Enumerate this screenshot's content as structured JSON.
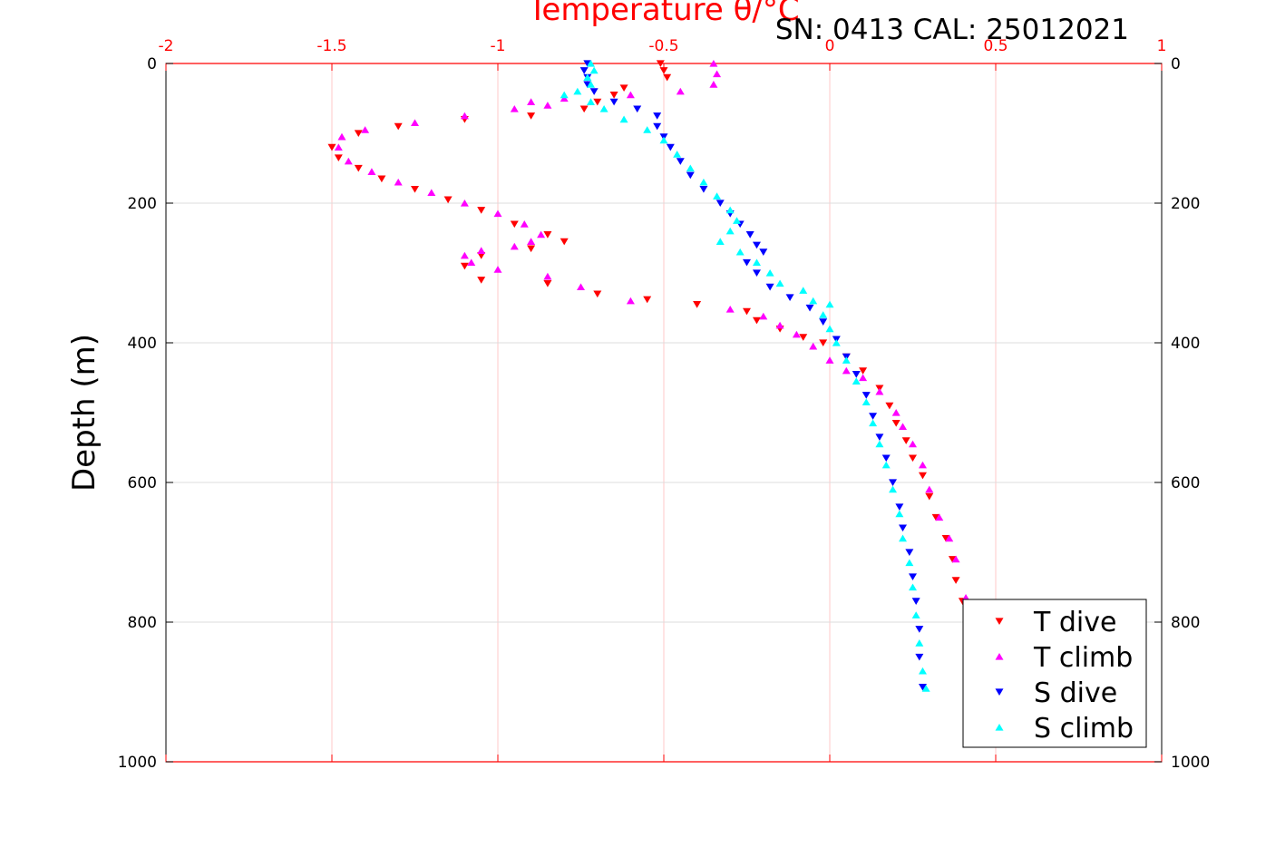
{
  "chart_data": {
    "type": "scatter",
    "title": "Temperature θ/°C",
    "subtitle": "SN: 0413  CAL: 25012021",
    "xlabel": "Temperature θ/°C",
    "ylabel": "Depth (m)",
    "xlim": [
      -2,
      1
    ],
    "ylim": [
      0,
      1000
    ],
    "y_reversed": true,
    "x_axis_position": "top",
    "x_axis_color": "#ff0000",
    "x_ticks": [
      "-2",
      "-1.5",
      "-1",
      "-0.5",
      "0",
      "0.5",
      "1"
    ],
    "y_ticks": [
      "0",
      "200",
      "400",
      "600",
      "800",
      "1000"
    ],
    "grid": true,
    "legend_position": "bottom-right",
    "series": [
      {
        "name": "T dive",
        "color": "#ff0000",
        "marker": "triangle-down",
        "points": [
          [
            -0.51,
            0
          ],
          [
            -0.5,
            10
          ],
          [
            -0.49,
            20
          ],
          [
            -0.62,
            35
          ],
          [
            -0.65,
            45
          ],
          [
            -0.7,
            55
          ],
          [
            -0.74,
            65
          ],
          [
            -0.9,
            75
          ],
          [
            -1.1,
            80
          ],
          [
            -1.3,
            90
          ],
          [
            -1.42,
            100
          ],
          [
            -1.5,
            120
          ],
          [
            -1.48,
            135
          ],
          [
            -1.42,
            150
          ],
          [
            -1.35,
            165
          ],
          [
            -1.25,
            180
          ],
          [
            -1.15,
            195
          ],
          [
            -1.05,
            210
          ],
          [
            -0.95,
            230
          ],
          [
            -0.85,
            245
          ],
          [
            -0.8,
            255
          ],
          [
            -0.9,
            265
          ],
          [
            -1.05,
            275
          ],
          [
            -1.1,
            290
          ],
          [
            -1.05,
            310
          ],
          [
            -0.85,
            315
          ],
          [
            -0.7,
            330
          ],
          [
            -0.55,
            338
          ],
          [
            -0.4,
            345
          ],
          [
            -0.25,
            355
          ],
          [
            -0.22,
            368
          ],
          [
            -0.15,
            380
          ],
          [
            -0.08,
            392
          ],
          [
            -0.02,
            400
          ],
          [
            0.05,
            420
          ],
          [
            0.1,
            440
          ],
          [
            0.15,
            465
          ],
          [
            0.18,
            490
          ],
          [
            0.2,
            515
          ],
          [
            0.23,
            540
          ],
          [
            0.25,
            565
          ],
          [
            0.28,
            590
          ],
          [
            0.3,
            620
          ],
          [
            0.32,
            650
          ],
          [
            0.35,
            680
          ],
          [
            0.37,
            710
          ],
          [
            0.38,
            740
          ],
          [
            0.4,
            770
          ]
        ]
      },
      {
        "name": "T climb",
        "color": "#ff00ff",
        "marker": "triangle-up",
        "points": [
          [
            -0.35,
            0
          ],
          [
            -0.34,
            15
          ],
          [
            -0.35,
            30
          ],
          [
            -0.45,
            40
          ],
          [
            -0.6,
            45
          ],
          [
            -0.8,
            50
          ],
          [
            -0.9,
            55
          ],
          [
            -0.85,
            60
          ],
          [
            -0.95,
            65
          ],
          [
            -1.1,
            75
          ],
          [
            -1.25,
            85
          ],
          [
            -1.4,
            95
          ],
          [
            -1.47,
            105
          ],
          [
            -1.48,
            120
          ],
          [
            -1.45,
            140
          ],
          [
            -1.38,
            155
          ],
          [
            -1.3,
            170
          ],
          [
            -1.2,
            185
          ],
          [
            -1.1,
            200
          ],
          [
            -1.0,
            215
          ],
          [
            -0.92,
            230
          ],
          [
            -0.87,
            245
          ],
          [
            -0.9,
            255
          ],
          [
            -0.95,
            262
          ],
          [
            -1.05,
            268
          ],
          [
            -1.1,
            275
          ],
          [
            -1.08,
            285
          ],
          [
            -1.0,
            295
          ],
          [
            -0.85,
            305
          ],
          [
            -0.75,
            320
          ],
          [
            -0.6,
            340
          ],
          [
            -0.3,
            352
          ],
          [
            -0.2,
            362
          ],
          [
            -0.15,
            375
          ],
          [
            -0.1,
            388
          ],
          [
            -0.05,
            405
          ],
          [
            0.0,
            425
          ],
          [
            0.05,
            440
          ],
          [
            0.1,
            450
          ],
          [
            0.15,
            470
          ],
          [
            0.2,
            500
          ],
          [
            0.22,
            520
          ],
          [
            0.25,
            545
          ],
          [
            0.28,
            575
          ],
          [
            0.3,
            610
          ],
          [
            0.33,
            650
          ],
          [
            0.36,
            680
          ],
          [
            0.38,
            710
          ],
          [
            0.41,
            765
          ]
        ]
      },
      {
        "name": "S dive",
        "color": "#0000ff",
        "marker": "triangle-down",
        "points": [
          [
            -0.73,
            0
          ],
          [
            -0.74,
            10
          ],
          [
            -0.73,
            20
          ],
          [
            -0.73,
            30
          ],
          [
            -0.71,
            40
          ],
          [
            -0.65,
            55
          ],
          [
            -0.58,
            65
          ],
          [
            -0.52,
            75
          ],
          [
            -0.52,
            90
          ],
          [
            -0.5,
            105
          ],
          [
            -0.48,
            120
          ],
          [
            -0.45,
            140
          ],
          [
            -0.42,
            160
          ],
          [
            -0.38,
            180
          ],
          [
            -0.33,
            200
          ],
          [
            -0.3,
            215
          ],
          [
            -0.27,
            230
          ],
          [
            -0.24,
            245
          ],
          [
            -0.22,
            260
          ],
          [
            -0.2,
            270
          ],
          [
            -0.25,
            285
          ],
          [
            -0.22,
            300
          ],
          [
            -0.18,
            320
          ],
          [
            -0.12,
            335
          ],
          [
            -0.06,
            350
          ],
          [
            -0.02,
            370
          ],
          [
            0.02,
            395
          ],
          [
            0.05,
            420
          ],
          [
            0.08,
            445
          ],
          [
            0.11,
            475
          ],
          [
            0.13,
            505
          ],
          [
            0.15,
            535
          ],
          [
            0.17,
            565
          ],
          [
            0.19,
            600
          ],
          [
            0.21,
            635
          ],
          [
            0.22,
            665
          ],
          [
            0.24,
            700
          ],
          [
            0.25,
            735
          ],
          [
            0.26,
            770
          ],
          [
            0.27,
            810
          ],
          [
            0.27,
            850
          ],
          [
            0.28,
            893
          ]
        ]
      },
      {
        "name": "S climb",
        "color": "#00ffff",
        "marker": "triangle-up",
        "points": [
          [
            -0.72,
            0
          ],
          [
            -0.71,
            10
          ],
          [
            -0.73,
            20
          ],
          [
            -0.72,
            30
          ],
          [
            -0.76,
            40
          ],
          [
            -0.8,
            45
          ],
          [
            -0.72,
            55
          ],
          [
            -0.68,
            65
          ],
          [
            -0.62,
            80
          ],
          [
            -0.55,
            95
          ],
          [
            -0.5,
            110
          ],
          [
            -0.46,
            130
          ],
          [
            -0.42,
            150
          ],
          [
            -0.38,
            170
          ],
          [
            -0.34,
            190
          ],
          [
            -0.3,
            210
          ],
          [
            -0.28,
            225
          ],
          [
            -0.3,
            240
          ],
          [
            -0.33,
            255
          ],
          [
            -0.27,
            270
          ],
          [
            -0.22,
            285
          ],
          [
            -0.18,
            300
          ],
          [
            -0.15,
            315
          ],
          [
            -0.08,
            325
          ],
          [
            -0.05,
            340
          ],
          [
            0.0,
            345
          ],
          [
            -0.02,
            360
          ],
          [
            0.0,
            380
          ],
          [
            0.02,
            400
          ],
          [
            0.05,
            425
          ],
          [
            0.08,
            455
          ],
          [
            0.11,
            485
          ],
          [
            0.13,
            515
          ],
          [
            0.15,
            545
          ],
          [
            0.17,
            575
          ],
          [
            0.19,
            610
          ],
          [
            0.21,
            645
          ],
          [
            0.22,
            680
          ],
          [
            0.24,
            715
          ],
          [
            0.25,
            750
          ],
          [
            0.26,
            790
          ],
          [
            0.27,
            830
          ],
          [
            0.28,
            870
          ],
          [
            0.29,
            895
          ]
        ]
      }
    ]
  }
}
